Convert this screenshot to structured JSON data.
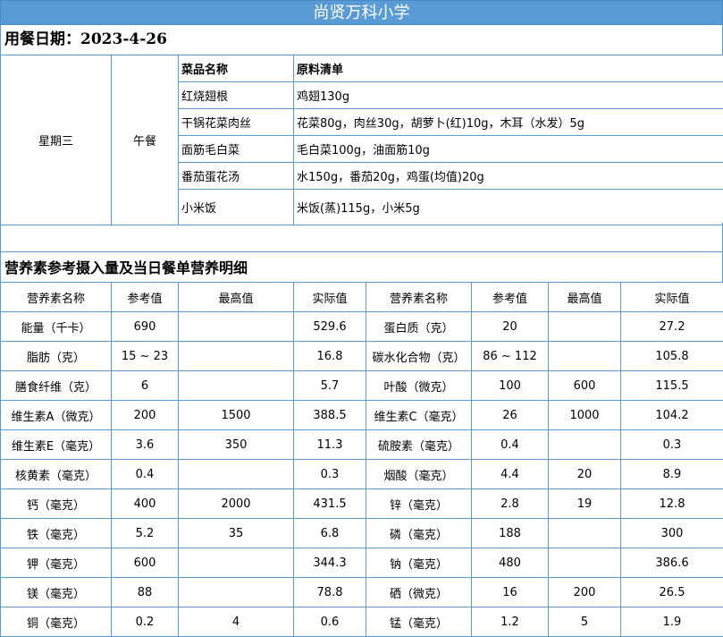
{
  "school": "尚贤万科小学",
  "date_label": "用餐日期：2023-4-26",
  "day": "星期三",
  "meal": "午餐",
  "menu_headers": [
    "菜品名称",
    "原料清单"
  ],
  "dishes": [
    {
      "name": "红烧翅根",
      "ingredients": "鸡翅130g"
    },
    {
      "name": "干锅花菜肉丝",
      "ingredients": "花菜80g，肉丝30g，胡萝卜(红)10g，木耳（水发）5g"
    },
    {
      "name": "面筋毛白菜",
      "ingredients": "毛白菜100g，油面筋10g"
    },
    {
      "name": "番茄蛋花汤",
      "ingredients": "水150g，番茄20g，鸡蛋(均值)20g"
    },
    {
      "name": "小米饭",
      "ingredients": "米饭(蒸)115g，小米5g"
    }
  ],
  "nutrition_title": "营养素参考摄入量及当日餐单营养明细",
  "nutrition_headers": [
    "营养素名称",
    "参考值",
    "最高值",
    "实际值",
    "营养素名称",
    "参考值",
    "最高值",
    "实际值"
  ],
  "nutrition_rows": [
    [
      "能量（千卡）",
      "690",
      "",
      "529.6",
      "蛋白质（克）",
      "20",
      "",
      "27.2"
    ],
    [
      "脂肪（克）",
      "15 ~ 23",
      "",
      "16.8",
      "碳水化合物（克）",
      "86 ~ 112",
      "",
      "105.8"
    ],
    [
      "膳食纤维（克）",
      "6",
      "",
      "5.7",
      "叶酸（微克）",
      "100",
      "600",
      "115.5"
    ],
    [
      "维生素A（微克）",
      "200",
      "1500",
      "388.5",
      "维生素C（毫克）",
      "26",
      "1000",
      "104.2"
    ],
    [
      "维生素E（毫克）",
      "3.6",
      "350",
      "11.3",
      "硫胺素（毫克）",
      "0.4",
      "",
      "0.3"
    ],
    [
      "核黄素（毫克）",
      "0.4",
      "",
      "0.3",
      "烟酸（毫克）",
      "4.4",
      "20",
      "8.9"
    ],
    [
      "钙（毫克）",
      "400",
      "2000",
      "431.5",
      "锌（毫克）",
      "2.8",
      "19",
      "12.8"
    ],
    [
      "铁（毫克）",
      "5.2",
      "35",
      "6.8",
      "磷（毫克）",
      "188",
      "",
      "300"
    ],
    [
      "钾（毫克）",
      "600",
      "",
      "344.3",
      "钠（毫克）",
      "480",
      "",
      "386.6"
    ],
    [
      "镁（毫克）",
      "88",
      "",
      "78.8",
      "硒（微克）",
      "16",
      "200",
      "26.5"
    ],
    [
      "铜（毫克）",
      "0.2",
      "4",
      "0.6",
      "锰（毫克）",
      "1.2",
      "5",
      "1.9"
    ]
  ],
  "colors": {
    "header_bg": "#5b9bd5",
    "border": "#5b9bd5"
  }
}
